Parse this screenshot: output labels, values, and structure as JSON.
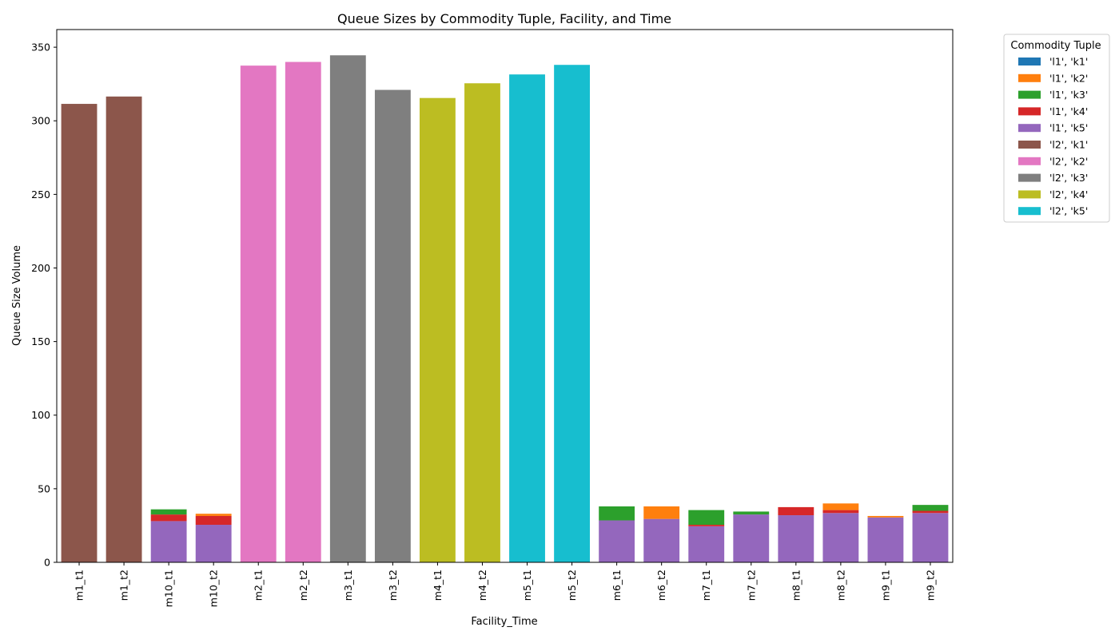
{
  "chart_data": {
    "type": "bar",
    "stacked": true,
    "title": "Queue Sizes by Commodity Tuple, Facility, and Time",
    "xlabel": "Facility_Time",
    "ylabel": "Queue Size Volume",
    "ylim": [
      0,
      362
    ],
    "yticks": [
      0,
      50,
      100,
      150,
      200,
      250,
      300,
      350
    ],
    "grid": false,
    "legend": {
      "title": "Commodity Tuple",
      "placement": "outside-top-right"
    },
    "categories": [
      "m1_t1",
      "m1_t2",
      "m10_t1",
      "m10_t2",
      "m2_t1",
      "m2_t2",
      "m3_t1",
      "m3_t2",
      "m4_t1",
      "m4_t2",
      "m5_t1",
      "m5_t2",
      "m6_t1",
      "m6_t2",
      "m7_t1",
      "m7_t2",
      "m8_t1",
      "m8_t2",
      "m9_t1",
      "m9_t2"
    ],
    "series": [
      {
        "name": "'l1', 'k1'",
        "color": "#1f77b4",
        "values": [
          0,
          0,
          0,
          0,
          0,
          0,
          0,
          0,
          0,
          0,
          0,
          0,
          0,
          0,
          0,
          0,
          0,
          0,
          0,
          0
        ]
      },
      {
        "name": "'l1', 'k2'",
        "color": "#ff7f0e",
        "values": [
          0,
          0,
          0,
          1.5,
          0,
          0,
          0,
          0,
          0,
          0,
          0,
          0,
          0,
          8.5,
          0,
          0,
          0,
          4.5,
          1,
          0
        ]
      },
      {
        "name": "'l1', 'k3'",
        "color": "#2ca02c",
        "values": [
          0,
          0,
          3.5,
          0,
          0,
          0,
          0,
          0,
          0,
          0,
          0,
          0,
          9.5,
          0,
          10,
          2,
          0,
          0,
          0,
          4
        ]
      },
      {
        "name": "'l1', 'k4'",
        "color": "#d62728",
        "values": [
          0,
          0,
          4.5,
          6,
          0,
          0,
          0,
          0,
          0,
          0,
          0,
          0,
          0,
          0,
          1,
          0,
          5.5,
          2,
          0,
          1.5
        ]
      },
      {
        "name": "'l1', 'k5'",
        "color": "#9467bd",
        "values": [
          0,
          0,
          28,
          25.5,
          0,
          0,
          0,
          0,
          0,
          0,
          0,
          0,
          28.5,
          29.5,
          24.5,
          32.5,
          32,
          33.5,
          30.5,
          33.5
        ]
      },
      {
        "name": "'l2', 'k1'",
        "color": "#8c564b",
        "values": [
          311.5,
          316.5,
          0,
          0,
          0,
          0,
          0,
          0,
          0,
          0,
          0,
          0,
          0,
          0,
          0,
          0,
          0,
          0,
          0,
          0
        ]
      },
      {
        "name": "'l2', 'k2'",
        "color": "#e377c2",
        "values": [
          0,
          0,
          0,
          0,
          337.5,
          340,
          0,
          0,
          0,
          0,
          0,
          0,
          0,
          0,
          0,
          0,
          0,
          0,
          0,
          0
        ]
      },
      {
        "name": "'l2', 'k3'",
        "color": "#7f7f7f",
        "values": [
          0,
          0,
          0,
          0,
          0,
          0,
          344.5,
          321,
          0,
          0,
          0,
          0,
          0,
          0,
          0,
          0,
          0,
          0,
          0,
          0
        ]
      },
      {
        "name": "'l2', 'k4'",
        "color": "#bcbd22",
        "values": [
          0,
          0,
          0,
          0,
          0,
          0,
          0,
          0,
          315.5,
          325.5,
          0,
          0,
          0,
          0,
          0,
          0,
          0,
          0,
          0,
          0
        ]
      },
      {
        "name": "'l2', 'k5'",
        "color": "#17becf",
        "values": [
          0,
          0,
          0,
          0,
          0,
          0,
          0,
          0,
          0,
          0,
          331.5,
          338,
          0,
          0,
          0,
          0,
          0,
          0,
          0,
          0
        ]
      }
    ],
    "stack_order": [
      "'l1', 'k5'",
      "'l1', 'k4'",
      "'l1', 'k3'",
      "'l1', 'k2'",
      "'l1', 'k1'",
      "'l2', 'k1'",
      "'l2', 'k2'",
      "'l2', 'k3'",
      "'l2', 'k4'",
      "'l2', 'k5'"
    ]
  }
}
